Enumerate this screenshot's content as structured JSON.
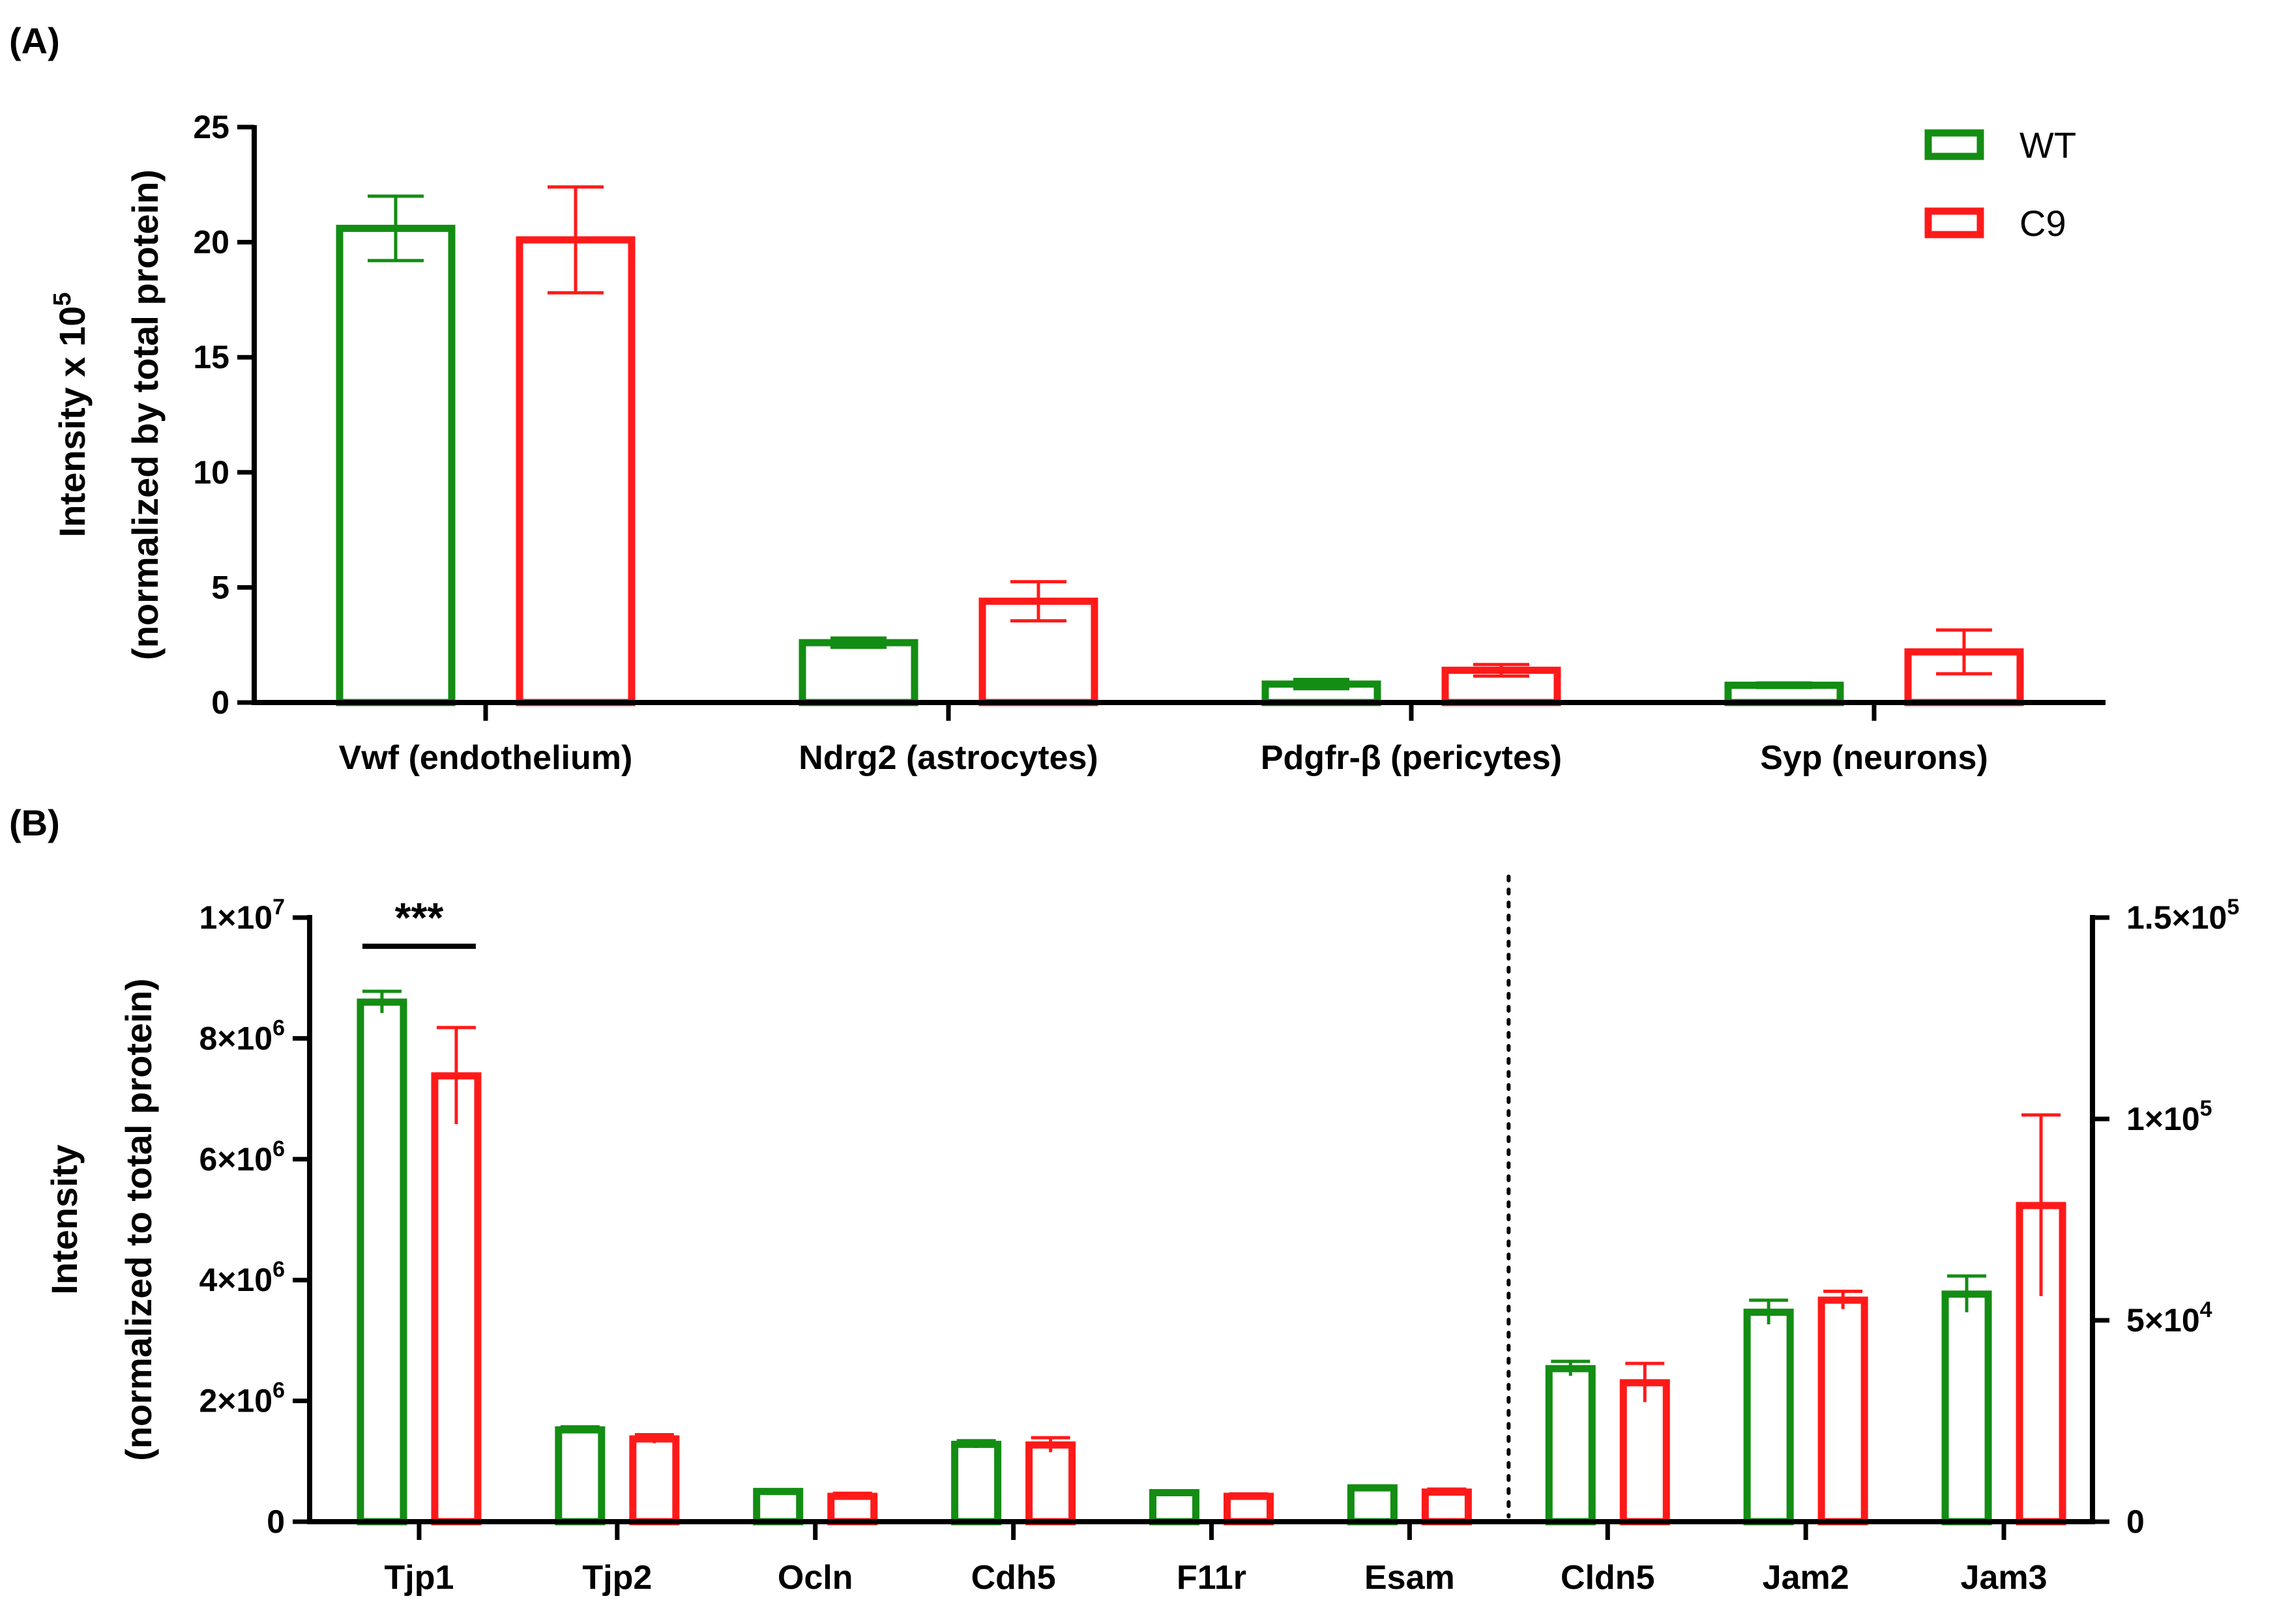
{
  "panel_a_label": "(A)",
  "panel_b_label": "(B)",
  "colors": {
    "wt": "#138d13",
    "c9": "#ff1a1a",
    "axis": "#000000"
  },
  "legend": [
    {
      "name": "WT",
      "color": "#138d13"
    },
    {
      "name": "C9",
      "color": "#ff1a1a"
    }
  ],
  "chart_data": [
    {
      "type": "bar",
      "panel": "(A)",
      "ylabel_line1": "Intensity x 10",
      "ylabel_exp": "5",
      "ylabel_line2": "(normalized by total protein)",
      "ylim": [
        0,
        25
      ],
      "yticks": [
        "0",
        "5",
        "10",
        "15",
        "20",
        "25"
      ],
      "categories": [
        "Vwf (endothelium)",
        "Ndrg2 (astrocytes)",
        "Pdgfr-β (pericytes)",
        "Syp (neurons)"
      ],
      "legend_position": "top-right",
      "series": [
        {
          "name": "WT",
          "values": [
            20.6,
            2.6,
            0.8,
            0.75
          ],
          "errors": [
            1.4,
            0.2,
            0.2,
            0.1
          ]
        },
        {
          "name": "C9",
          "values": [
            20.1,
            4.4,
            1.4,
            2.2
          ],
          "errors": [
            2.3,
            0.85,
            0.25,
            0.95
          ]
        }
      ]
    },
    {
      "type": "bar",
      "panel": "(B)",
      "ylabel_line1": "Intensity",
      "ylabel_line2": "(normalized to total protein)",
      "left_axis": {
        "ylim": [
          0,
          10000000
        ],
        "ticks": [
          {
            "value": 0,
            "mant": "0",
            "exp": ""
          },
          {
            "value": 2000000,
            "mant": "2×10",
            "exp": "6"
          },
          {
            "value": 4000000,
            "mant": "4×10",
            "exp": "6"
          },
          {
            "value": 6000000,
            "mant": "6×10",
            "exp": "6"
          },
          {
            "value": 8000000,
            "mant": "8×10",
            "exp": "6"
          },
          {
            "value": 10000000,
            "mant": "1×10",
            "exp": "7"
          }
        ]
      },
      "right_axis": {
        "ylim": [
          0,
          150000
        ],
        "ticks": [
          {
            "value": 0,
            "mant": "0",
            "exp": ""
          },
          {
            "value": 50000,
            "mant": "5×10",
            "exp": "4"
          },
          {
            "value": 100000,
            "mant": "1×10",
            "exp": "5"
          },
          {
            "value": 150000,
            "mant": "1.5×10",
            "exp": "5"
          }
        ]
      },
      "categories": [
        "Tjp1",
        "Tjp2",
        "Ocln",
        "Cdh5",
        "F11r",
        "Esam",
        "Cldn5",
        "Jam2",
        "Jam3"
      ],
      "category_axis": [
        "left",
        "left",
        "left",
        "left",
        "left",
        "left",
        "right",
        "right",
        "right"
      ],
      "series": [
        {
          "name": "WT",
          "values": [
            8600000,
            1520000,
            500000,
            1280000,
            480000,
            560000,
            38000,
            52000,
            56500
          ],
          "errors": [
            180000,
            50000,
            30000,
            60000,
            30000,
            30000,
            1800,
            3000,
            4500
          ]
        },
        {
          "name": "C9",
          "values": [
            7380000,
            1370000,
            420000,
            1270000,
            420000,
            490000,
            34500,
            55000,
            78500
          ],
          "errors": [
            800000,
            70000,
            50000,
            120000,
            40000,
            50000,
            4800,
            2200,
            22500
          ]
        }
      ],
      "significance": {
        "category": "Tjp1",
        "label": "***"
      }
    }
  ]
}
